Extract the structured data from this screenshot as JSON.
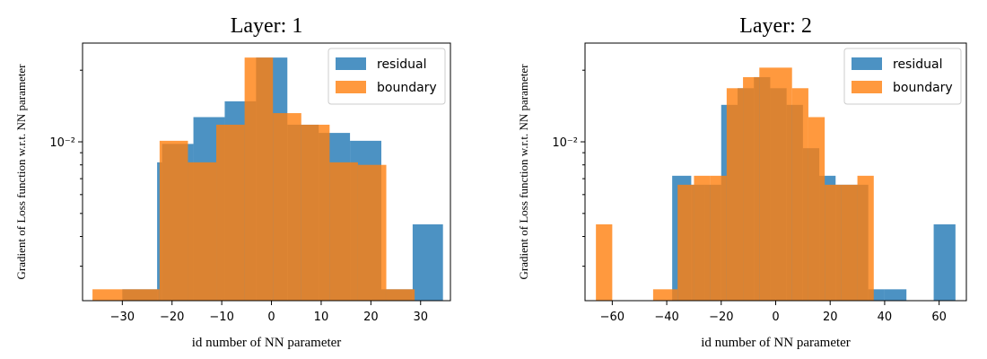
{
  "figure": {
    "colors": {
      "residual": "#1f77b4",
      "boundary": "#ff7f0e",
      "frame": "#000000"
    }
  },
  "chart_data": [
    {
      "type": "histogram",
      "title": "Layer: 1",
      "xlabel": "id number of NN parameter",
      "ylabel": "Gradient of Loss function w.r.t. NN parameter",
      "yscale": "log",
      "xlim": [
        -38,
        36
      ],
      "ylim": [
        0.00215,
        0.026
      ],
      "xticks": [
        -30,
        -20,
        -10,
        0,
        10,
        20,
        30
      ],
      "xtick_labels": [
        "−30",
        "−20",
        "−10",
        "0",
        "10",
        "20",
        "30"
      ],
      "yticks": [
        0.01
      ],
      "ytick_labels": [
        "10⁻²"
      ],
      "legend": [
        "residual",
        "boundary"
      ],
      "legend_location": "top-right",
      "series": [
        {
          "name": "residual",
          "bins": [
            -30,
            -23,
            -22,
            -15.7,
            -9.4,
            -3.1,
            3.2,
            9.5,
            15.8,
            22.1,
            28.4,
            34.5
          ],
          "values": [
            0.0024,
            0.0082,
            0.0098,
            0.0127,
            0.0148,
            0.0226,
            0.0118,
            0.0109,
            0.0101,
            0.0024,
            0.0045
          ]
        },
        {
          "name": "boundary",
          "bins": [
            -36,
            -22.5,
            -16.8,
            -11.1,
            -5.4,
            0.3,
            6,
            11.7,
            17.4,
            23.1,
            28.8
          ],
          "values": [
            0.0024,
            0.0101,
            0.0082,
            0.0118,
            0.0226,
            0.0132,
            0.0118,
            0.0082,
            0.008,
            0.0024
          ]
        }
      ]
    },
    {
      "type": "histogram",
      "title": "Layer: 2",
      "xlabel": "id number of NN parameter",
      "ylabel": "Gradient of Loss function w.r.t. NN parameter",
      "yscale": "log",
      "xlim": [
        -70,
        70
      ],
      "ylim": [
        0.00215,
        0.026
      ],
      "xticks": [
        -60,
        -40,
        -20,
        0,
        20,
        40,
        60
      ],
      "xtick_labels": [
        "−60",
        "−40",
        "−20",
        "0",
        "20",
        "40",
        "60"
      ],
      "yticks": [
        0.01
      ],
      "ytick_labels": [
        "10⁻²"
      ],
      "legend": [
        "residual",
        "boundary"
      ],
      "legend_location": "top-right",
      "series": [
        {
          "name": "residual",
          "bins": [
            -38,
            -31,
            -26,
            -20,
            -14,
            -8,
            -2,
            4,
            10,
            16,
            22,
            28,
            34,
            40,
            48,
            58,
            66
          ],
          "values": [
            0.0072,
            0.0066,
            0.0066,
            0.0143,
            0.0168,
            0.0187,
            0.0168,
            0.0143,
            0.0094,
            0.0072,
            0.0066,
            0.0066,
            0.0024,
            0.0024,
            0.0,
            0.0045
          ]
        },
        {
          "name": "boundary",
          "bins": [
            -66,
            -60,
            -45,
            -36,
            -30,
            -24,
            -18,
            -12,
            -6,
            0,
            6,
            12,
            18,
            24,
            30,
            36
          ],
          "values": [
            0.0045,
            0.0,
            0.0024,
            0.0066,
            0.0072,
            0.0072,
            0.0168,
            0.0187,
            0.0205,
            0.0205,
            0.0168,
            0.0127,
            0.0066,
            0.0066,
            0.0072
          ]
        }
      ]
    }
  ]
}
